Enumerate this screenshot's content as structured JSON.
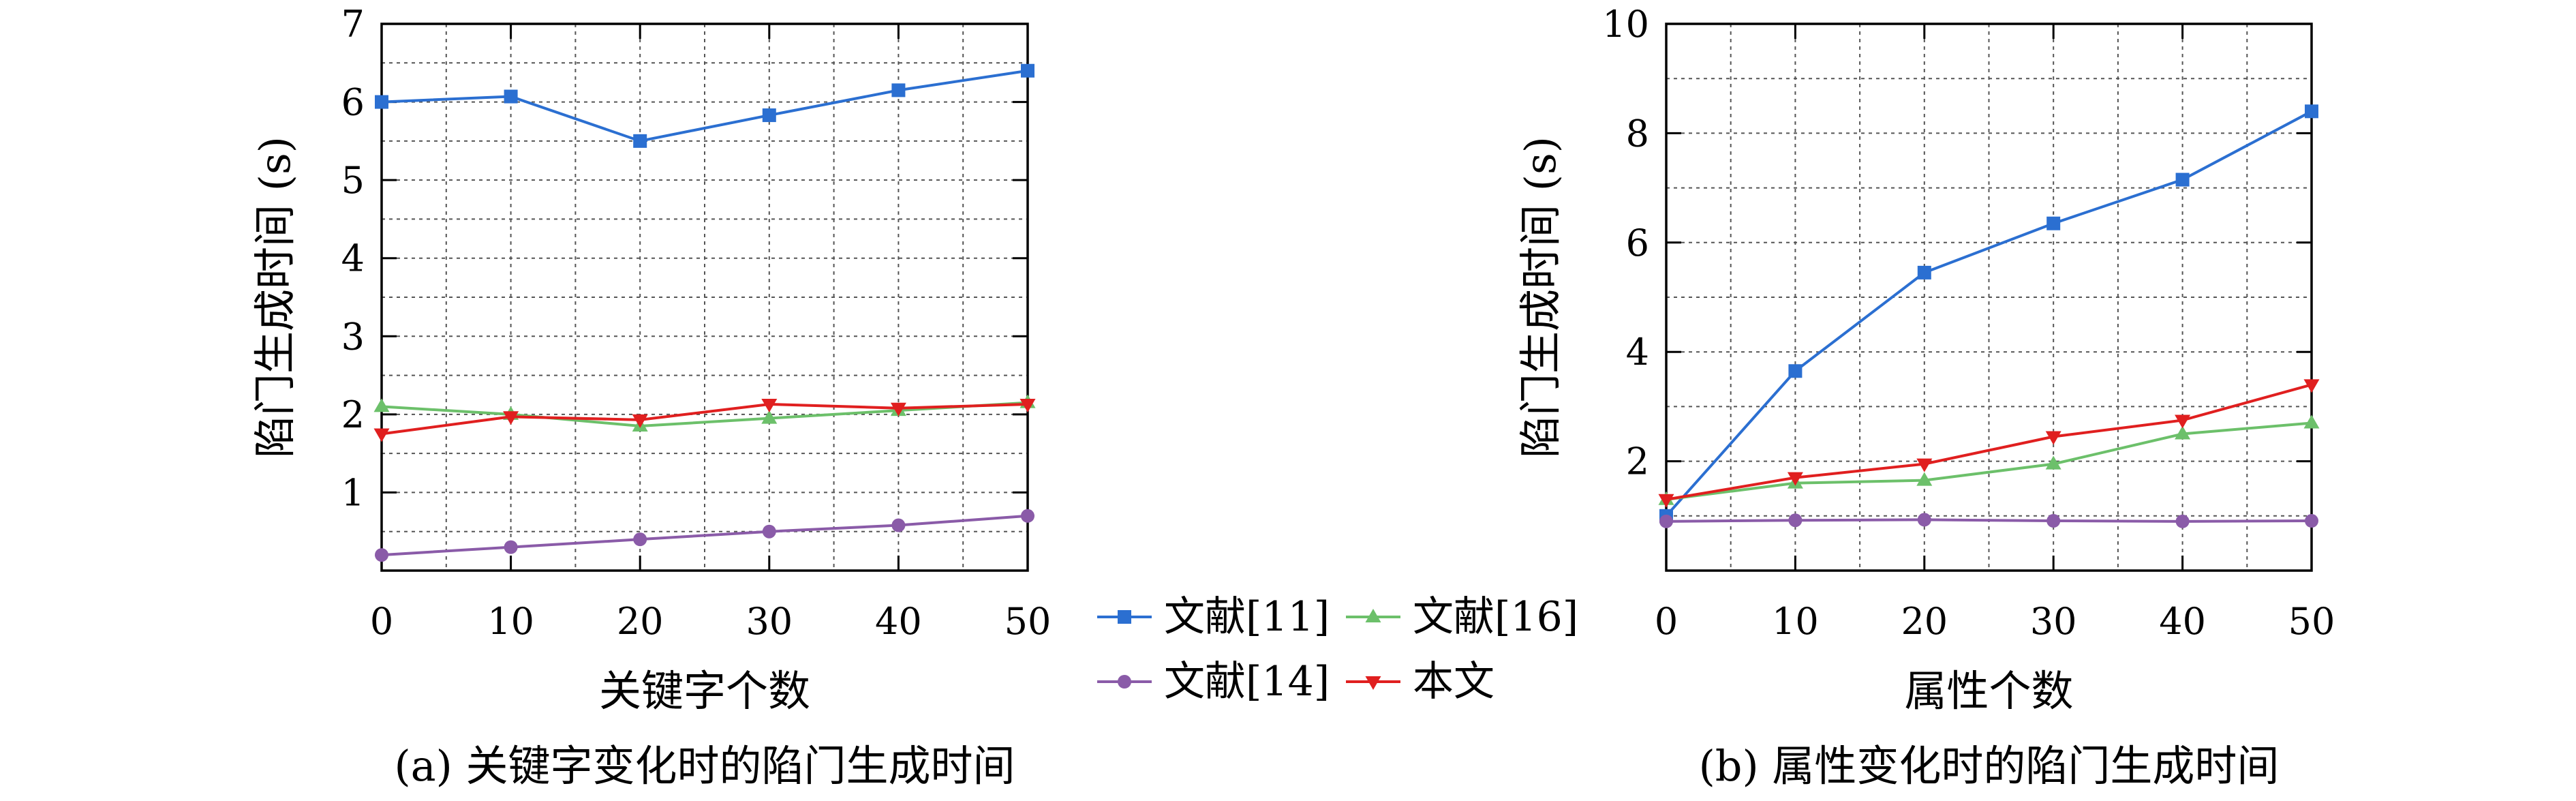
{
  "chart_data": [
    {
      "type": "line",
      "caption": "(a) 关键字变化时的陷门生成时间",
      "xlabel": "关键字个数",
      "ylabel": "陷门生成时间 (s)",
      "xlim": [
        0,
        50
      ],
      "ylim": [
        0,
        7
      ],
      "x": [
        0,
        10,
        20,
        30,
        40,
        50
      ],
      "xticks": [
        "0",
        "10",
        "20",
        "30",
        "40",
        "50"
      ],
      "yticks": [
        "1",
        "2",
        "3",
        "4",
        "5",
        "6",
        "7"
      ],
      "grid": true,
      "series": [
        {
          "name": "文献[11]",
          "color": "#2b6fd1",
          "marker": "square",
          "values": [
            6.0,
            6.07,
            5.5,
            5.83,
            6.15,
            6.4
          ]
        },
        {
          "name": "文献[16]",
          "color": "#6cc06a",
          "marker": "triangle-up",
          "values": [
            2.1,
            2.0,
            1.85,
            1.95,
            2.05,
            2.15
          ]
        },
        {
          "name": "文献[14]",
          "color": "#8a5ba8",
          "marker": "circle",
          "values": [
            0.2,
            0.3,
            0.4,
            0.5,
            0.58,
            0.7
          ]
        },
        {
          "name": "本文",
          "color": "#e01f1f",
          "marker": "triangle-down",
          "values": [
            1.75,
            1.97,
            1.93,
            2.13,
            2.08,
            2.13
          ]
        }
      ]
    },
    {
      "type": "line",
      "caption": "(b) 属性变化时的陷门生成时间",
      "xlabel": "属性个数",
      "ylabel": "陷门生成时间 (s)",
      "xlim": [
        0,
        50
      ],
      "ylim": [
        0,
        10
      ],
      "x": [
        0,
        10,
        20,
        30,
        40,
        50
      ],
      "xticks": [
        "0",
        "10",
        "20",
        "30",
        "40",
        "50"
      ],
      "yticks": [
        "2",
        "4",
        "6",
        "8",
        "10"
      ],
      "grid": true,
      "series": [
        {
          "name": "文献[11]",
          "color": "#2b6fd1",
          "marker": "square",
          "values": [
            1.0,
            3.65,
            5.45,
            6.35,
            7.15,
            8.4
          ]
        },
        {
          "name": "文献[16]",
          "color": "#6cc06a",
          "marker": "triangle-up",
          "values": [
            1.3,
            1.6,
            1.65,
            1.95,
            2.5,
            2.7
          ]
        },
        {
          "name": "文献[14]",
          "color": "#8a5ba8",
          "marker": "circle",
          "values": [
            0.9,
            0.92,
            0.93,
            0.91,
            0.9,
            0.91
          ]
        },
        {
          "name": "本文",
          "color": "#e01f1f",
          "marker": "triangle-down",
          "values": [
            1.3,
            1.7,
            1.95,
            2.45,
            2.75,
            3.4
          ]
        }
      ]
    }
  ],
  "legend": {
    "placement": "between-charts",
    "entries": [
      {
        "label": "文献[11]",
        "series": 0
      },
      {
        "label": "文献[16]",
        "series": 1
      },
      {
        "label": "文献[14]",
        "series": 2
      },
      {
        "label": "本文",
        "series": 3
      }
    ]
  }
}
